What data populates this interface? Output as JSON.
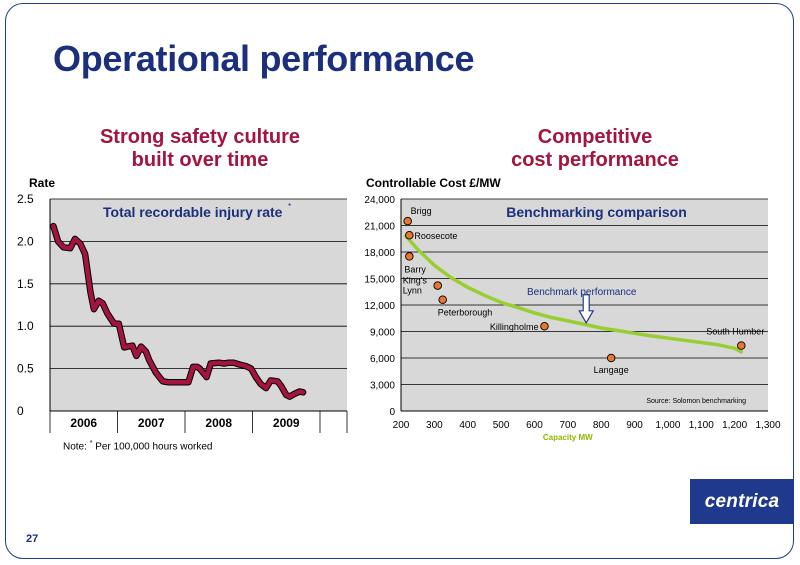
{
  "slide": {
    "title": "Operational performance",
    "page_number": "27",
    "brand": "centrica"
  },
  "left_panel": {
    "heading_line1": "Strong safety culture",
    "heading_line2": "built over time",
    "footnote_prefix": "Note: ",
    "footnote_marker": "*",
    "footnote_text": " Per 100,000 hours worked"
  },
  "right_panel": {
    "heading_line1": "Competitive",
    "heading_line2": "cost performance"
  },
  "colors": {
    "panel_bg": "#d8d8d8",
    "title_blue": "#1b2f7c",
    "heading_red": "#a3143e",
    "injury_line": "#a3143e",
    "benchmark_curve": "#9acd32",
    "site_point": "#e8772e",
    "arrow_fill": "#ffffff",
    "arrow_stroke": "#1f3a8c",
    "axis_title_green": "#8db600"
  },
  "chart_data": [
    {
      "type": "line",
      "title": "Total recordable injury rate",
      "title_marker": "*",
      "ylabel": "Rate",
      "xlabel": "",
      "ylim": [
        0,
        2.5
      ],
      "yticks": [
        0,
        0.5,
        1.0,
        1.5,
        2.0,
        2.5
      ],
      "ytick_labels": [
        "0",
        "0.5",
        "1.0",
        "1.5",
        "2.0",
        "2.5"
      ],
      "xlim": [
        2005.5,
        2009.9
      ],
      "categories": [
        "2006",
        "2007",
        "2008",
        "2009"
      ],
      "category_ranges": [
        [
          2005.5,
          2006.5
        ],
        [
          2006.5,
          2007.5
        ],
        [
          2007.5,
          2008.5
        ],
        [
          2008.5,
          2009.5
        ]
      ],
      "grid": true,
      "series": [
        {
          "name": "",
          "x": [
            2005.55,
            2005.62,
            2005.7,
            2005.8,
            2005.87,
            2005.95,
            2006.02,
            2006.1,
            2006.15,
            2006.22,
            2006.28,
            2006.35,
            2006.45,
            2006.52,
            2006.6,
            2006.65,
            2006.72,
            2006.78,
            2006.85,
            2006.92,
            2006.97,
            2007.07,
            2007.17,
            2007.25,
            2007.35,
            2007.45,
            2007.55,
            2007.62,
            2007.68,
            2007.72,
            2007.82,
            2007.88,
            2008.0,
            2008.08,
            2008.15,
            2008.22,
            2008.3,
            2008.4,
            2008.48,
            2008.55,
            2008.62,
            2008.7,
            2008.77,
            2008.87,
            2008.92,
            2009.0,
            2009.05,
            2009.12,
            2009.2,
            2009.25
          ],
          "values": [
            2.18,
            2.0,
            1.93,
            1.92,
            2.03,
            1.97,
            1.85,
            1.4,
            1.2,
            1.3,
            1.27,
            1.15,
            1.03,
            1.03,
            0.75,
            0.76,
            0.77,
            0.65,
            0.76,
            0.7,
            0.6,
            0.45,
            0.35,
            0.34,
            0.34,
            0.34,
            0.34,
            0.52,
            0.52,
            0.5,
            0.4,
            0.56,
            0.57,
            0.56,
            0.57,
            0.57,
            0.55,
            0.53,
            0.5,
            0.4,
            0.32,
            0.27,
            0.36,
            0.35,
            0.3,
            0.19,
            0.17,
            0.2,
            0.23,
            0.22
          ]
        }
      ]
    },
    {
      "type": "scatter",
      "title": "Benchmarking comparison",
      "ylabel": "Controllable Cost £/MW",
      "xlabel": "Capacity MW",
      "xlim": [
        200,
        1300
      ],
      "ylim": [
        0,
        24000
      ],
      "xticks": [
        200,
        300,
        400,
        500,
        600,
        700,
        800,
        900,
        1000,
        1100,
        1200,
        1300
      ],
      "xtick_labels": [
        "200",
        "300",
        "400",
        "500",
        "600",
        "700",
        "800",
        "900",
        "1,000",
        "1,100",
        "1,200",
        "1,300"
      ],
      "yticks": [
        0,
        3000,
        6000,
        9000,
        12000,
        15000,
        18000,
        21000,
        24000
      ],
      "ytick_labels": [
        "0",
        "3,000",
        "6,000",
        "9,000",
        "12,000",
        "15,000",
        "18,000",
        "21,000",
        "24,000"
      ],
      "grid": true,
      "source_note": "Source: Solomon benchmarking",
      "series": [
        {
          "name": "",
          "points": [
            {
              "label": "Brigg",
              "x": 220,
              "y": 21500
            },
            {
              "label": "Roosecote",
              "x": 225,
              "y": 19900
            },
            {
              "label": "Barry",
              "x": 225,
              "y": 17500
            },
            {
              "label": "King's\nLynn",
              "x": 310,
              "y": 14200
            },
            {
              "label": "Peterborough",
              "x": 325,
              "y": 12600
            },
            {
              "label": "Killingholme",
              "x": 630,
              "y": 9600
            },
            {
              "label": "Langage",
              "x": 830,
              "y": 6000
            },
            {
              "label": "South Humber",
              "x": 1220,
              "y": 7400
            }
          ]
        }
      ],
      "trend": {
        "name": "Benchmark performance",
        "type": "power",
        "x": [
          215,
          250,
          300,
          350,
          400,
          450,
          500,
          550,
          600,
          650,
          700,
          750,
          800,
          850,
          900,
          950,
          1000,
          1050,
          1100,
          1150,
          1200,
          1220
        ],
        "values": [
          19800,
          18300,
          16500,
          15100,
          14000,
          13100,
          12300,
          11700,
          11100,
          10600,
          10200,
          9800,
          9400,
          9100,
          8800,
          8500,
          8250,
          8000,
          7750,
          7500,
          7100,
          6700
        ]
      },
      "arrow_at_x": 755
    }
  ]
}
